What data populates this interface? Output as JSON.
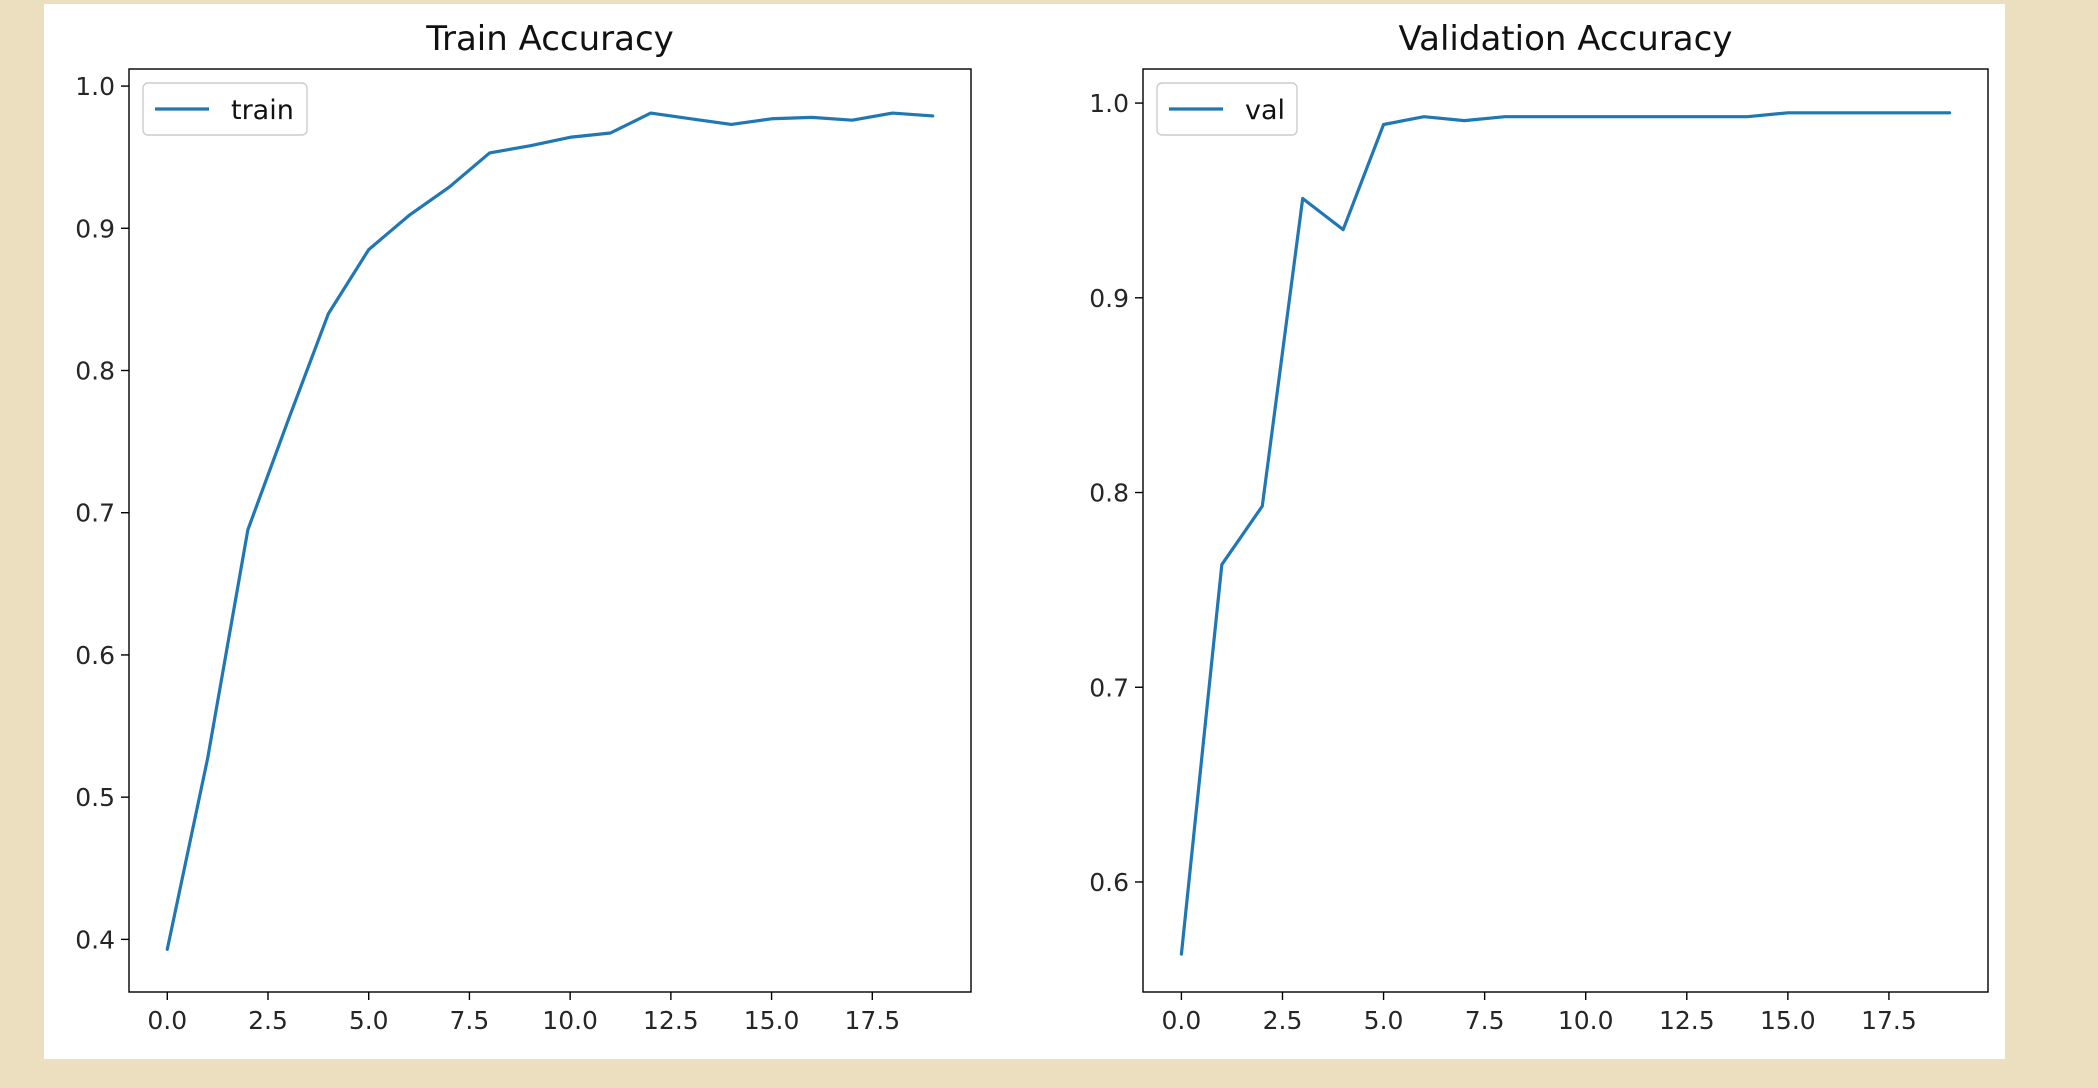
{
  "colors": {
    "figure_background": "#ebdfbf",
    "series": "#1f77b4"
  },
  "chart_data": [
    {
      "type": "line",
      "title": "Train Accuracy",
      "xlabel": "",
      "ylabel": "",
      "xlim": [
        -0.95,
        19.95
      ],
      "ylim": [
        0.363,
        1.012
      ],
      "xticks": [
        0.0,
        2.5,
        5.0,
        7.5,
        10.0,
        12.5,
        15.0,
        17.5
      ],
      "xtick_labels": [
        "0.0",
        "2.5",
        "5.0",
        "7.5",
        "10.0",
        "12.5",
        "15.0",
        "17.5"
      ],
      "yticks": [
        0.4,
        0.5,
        0.6,
        0.7,
        0.8,
        0.9,
        1.0
      ],
      "ytick_labels": [
        "0.4",
        "0.5",
        "0.6",
        "0.7",
        "0.8",
        "0.9",
        "1.0"
      ],
      "grid": false,
      "legend_position": "upper-left",
      "series": [
        {
          "name": "train",
          "x": [
            0,
            1,
            2,
            3,
            4,
            5,
            6,
            7,
            8,
            9,
            10,
            11,
            12,
            13,
            14,
            15,
            16,
            17,
            18,
            19
          ],
          "y": [
            0.393,
            0.527,
            0.688,
            0.765,
            0.84,
            0.885,
            0.909,
            0.929,
            0.953,
            0.958,
            0.964,
            0.967,
            0.981,
            0.977,
            0.973,
            0.977,
            0.978,
            0.976,
            0.981,
            0.979
          ]
        }
      ]
    },
    {
      "type": "line",
      "title": "Validation Accuracy",
      "xlabel": "",
      "ylabel": "",
      "xlim": [
        -0.95,
        19.95
      ],
      "ylim": [
        0.5435,
        1.0175
      ],
      "xticks": [
        0.0,
        2.5,
        5.0,
        7.5,
        10.0,
        12.5,
        15.0,
        17.5
      ],
      "xtick_labels": [
        "0.0",
        "2.5",
        "5.0",
        "7.5",
        "10.0",
        "12.5",
        "15.0",
        "17.5"
      ],
      "yticks": [
        0.6,
        0.7,
        0.8,
        0.9,
        1.0
      ],
      "ytick_labels": [
        "0.6",
        "0.7",
        "0.8",
        "0.9",
        "1.0"
      ],
      "grid": false,
      "legend_position": "upper-left",
      "series": [
        {
          "name": "val",
          "x": [
            0,
            1,
            2,
            3,
            4,
            5,
            6,
            7,
            8,
            9,
            10,
            11,
            12,
            13,
            14,
            15,
            16,
            17,
            18,
            19
          ],
          "y": [
            0.563,
            0.763,
            0.793,
            0.951,
            0.935,
            0.989,
            0.993,
            0.991,
            0.993,
            0.993,
            0.993,
            0.993,
            0.993,
            0.993,
            0.993,
            0.995,
            0.995,
            0.995,
            0.995,
            0.995
          ]
        }
      ]
    }
  ]
}
